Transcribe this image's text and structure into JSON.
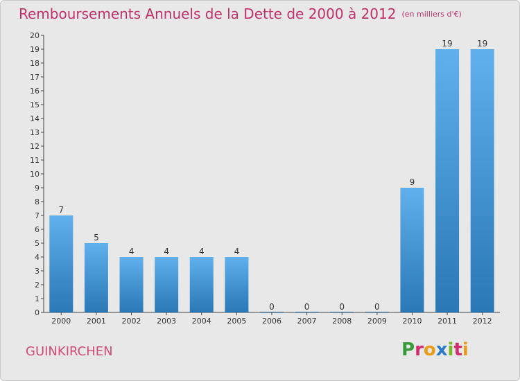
{
  "title": "Remboursements Annuels de la Dette de 2000 à 2012",
  "unit": "(en milliers d'€)",
  "commune": "GUINKIRCHEN",
  "logo": "Proxiti",
  "colors": {
    "title": "#c0306a",
    "bar_top": "#5fb0ec",
    "bar_bottom": "#2a78b6",
    "background": "#e8e8e8"
  },
  "chart_data": {
    "type": "bar",
    "title": "Remboursements Annuels de la Dette de 2000 à 2012",
    "unit": "(en milliers d'€)",
    "categories": [
      "2000",
      "2001",
      "2002",
      "2003",
      "2004",
      "2005",
      "2006",
      "2007",
      "2008",
      "2009",
      "2010",
      "2011",
      "2012"
    ],
    "values": [
      7,
      5,
      4,
      4,
      4,
      4,
      0,
      0,
      0,
      0,
      9,
      19,
      19
    ],
    "ylim": [
      0,
      20
    ],
    "yticks": [
      0,
      1,
      2,
      3,
      4,
      5,
      6,
      7,
      8,
      9,
      10,
      11,
      12,
      13,
      14,
      15,
      16,
      17,
      18,
      19,
      20
    ],
    "grid": false,
    "legend": "none"
  }
}
